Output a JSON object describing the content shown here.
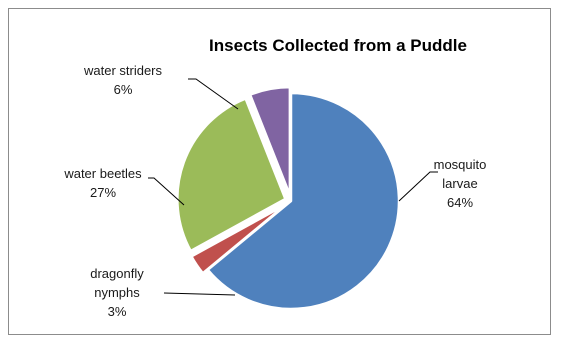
{
  "chart_data": {
    "type": "pie",
    "title": "Insects Collected from a Puddle",
    "slices": [
      {
        "key": "mosquito",
        "label_lines": [
          "mosquito",
          "larvae"
        ],
        "percent_label": "64%",
        "value": 64,
        "color": "#4f81bd"
      },
      {
        "key": "dragonfly",
        "label_lines": [
          "dragonfly",
          "nymphs"
        ],
        "percent_label": "3%",
        "value": 3,
        "color": "#c0504d"
      },
      {
        "key": "beetles",
        "label_lines": [
          "water beetles"
        ],
        "percent_label": "27%",
        "value": 27,
        "color": "#9bbb59"
      },
      {
        "key": "striders",
        "label_lines": [
          "water striders"
        ],
        "percent_label": "6%",
        "value": 6,
        "color": "#8064a2"
      }
    ],
    "start_angle_deg": 0,
    "direction": "clockwise",
    "legend": "none",
    "data_labels": "outside with leader lines"
  }
}
